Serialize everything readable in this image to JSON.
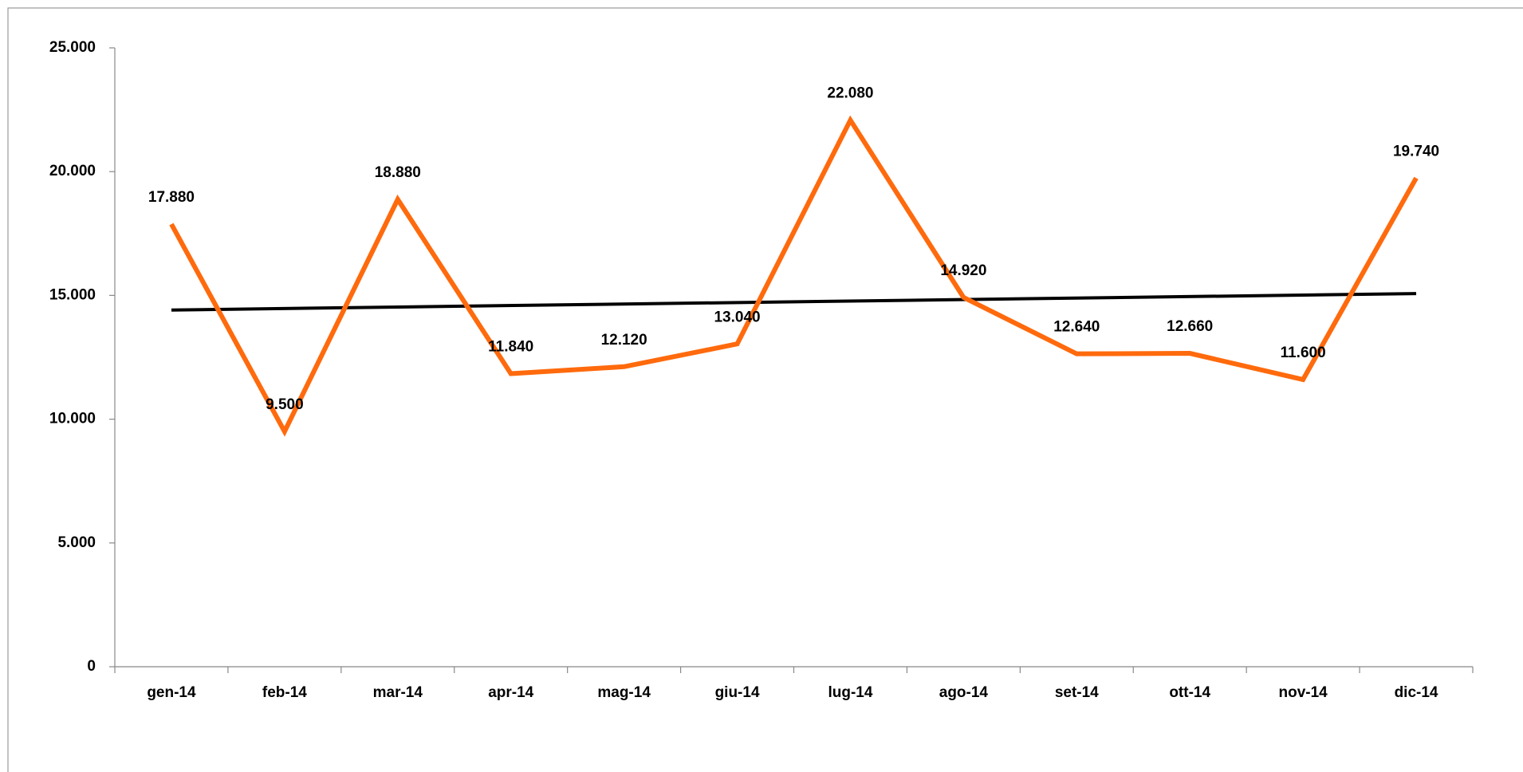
{
  "chart_data": {
    "type": "line",
    "categories": [
      "gen-14",
      "feb-14",
      "mar-14",
      "apr-14",
      "mag-14",
      "giu-14",
      "lug-14",
      "ago-14",
      "set-14",
      "ott-14",
      "nov-14",
      "dic-14"
    ],
    "series": [
      {
        "color": "#ff6a0d",
        "values": [
          17880,
          9500,
          18880,
          11840,
          12120,
          13040,
          22080,
          14920,
          12640,
          12660,
          11600,
          19740
        ],
        "value_labels": [
          "17.880",
          "9.500",
          "18.880",
          "11.840",
          "12.120",
          "13.040",
          "22.080",
          "14.920",
          "12.640",
          "12.660",
          "11.600",
          "19.740"
        ]
      }
    ],
    "trendline": "linear",
    "trendline_color": "#000000",
    "ylim": [
      0,
      25000
    ],
    "yticks": [
      0,
      {
        "value": 5000,
        "label": "5.000"
      },
      {
        "value": 10000,
        "label": "10.000"
      },
      {
        "value": 15000,
        "label": "15.000"
      },
      {
        "value": 20000,
        "label": "20.000"
      },
      {
        "value": 25000,
        "label": "25.000"
      }
    ],
    "grid": false
  }
}
